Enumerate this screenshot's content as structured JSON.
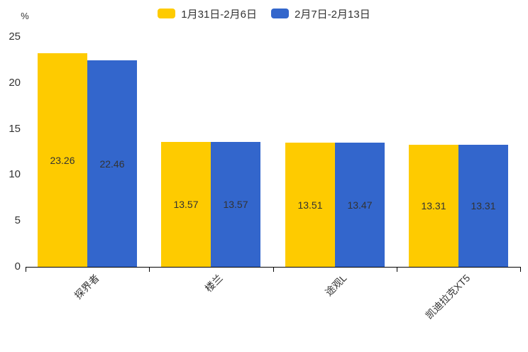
{
  "chart_data": {
    "type": "bar",
    "title": "",
    "categories": [
      "探界者",
      "楼兰",
      "途观L",
      "凯迪拉克XT5"
    ],
    "series": [
      {
        "name": "1月31日-2月6日",
        "color": "#FECB00",
        "values": [
          23.26,
          13.57,
          13.51,
          13.31
        ]
      },
      {
        "name": "2月7日-2月13日",
        "color": "#3366CC",
        "values": [
          22.46,
          13.57,
          13.47,
          13.31
        ]
      }
    ],
    "xlabel": "",
    "ylabel": "%",
    "ylim": [
      0,
      25
    ],
    "yticks": [
      0,
      5,
      10,
      15,
      20,
      25
    ],
    "grid": false,
    "legend_position": "top-center",
    "value_labels": "inside-middle",
    "category_label_rotation_deg": -45,
    "text_color": "#333333",
    "axis_color": "#000000",
    "background_color": "#ffffff"
  }
}
